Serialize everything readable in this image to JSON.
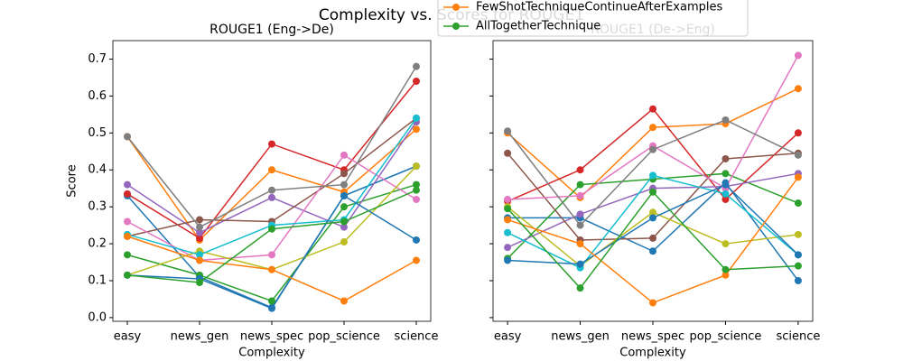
{
  "title": "Complexity vs. Scores for ROUGE1",
  "chart_data": [
    {
      "type": "line",
      "title": "ROUGE1 (Eng->De)",
      "xlabel": "Complexity",
      "ylabel": "Score",
      "categories": [
        "easy",
        "news_gen",
        "news_spec",
        "pop_science",
        "science"
      ],
      "ylim": [
        -0.01,
        0.75
      ],
      "yticks": [
        {
          "value": 0,
          "label": "0.0"
        },
        0.1,
        0.2,
        0.3,
        0.4,
        0.5,
        0.6,
        0.7
      ],
      "series": [
        {
          "color": "#1f77b4",
          "values": [
            0.33,
            0.11,
            0.027,
            0.33,
            0.41
          ]
        },
        {
          "color": "#ff7f0e",
          "values": [
            0.49,
            0.21,
            0.4,
            0.34,
            0.51
          ]
        },
        {
          "color": "#2ca02c",
          "values": [
            0.17,
            0.115,
            0.045,
            0.3,
            0.36
          ]
        },
        {
          "color": "#d62728",
          "values": [
            0.335,
            0.215,
            0.47,
            0.4,
            0.64
          ]
        },
        {
          "color": "#9467bd",
          "values": [
            0.36,
            0.23,
            0.325,
            0.245,
            0.53
          ]
        },
        {
          "color": "#8c564b",
          "values": [
            0.22,
            0.265,
            0.26,
            0.39,
            0.54
          ]
        },
        {
          "color": "#e377c2",
          "values": [
            0.26,
            0.155,
            0.17,
            0.44,
            0.32
          ]
        },
        {
          "color": "#7f7f7f",
          "values": [
            0.49,
            0.245,
            0.345,
            0.36,
            0.68
          ]
        },
        {
          "color": "#bcbd22",
          "values": [
            0.115,
            0.18,
            0.13,
            0.205,
            0.41
          ]
        },
        {
          "color": "#17becf",
          "values": [
            0.225,
            0.17,
            0.25,
            0.265,
            0.54
          ]
        },
        {
          "color": "#1f77b4",
          "values": [
            0.115,
            0.105,
            0.025,
            0.33,
            0.21
          ]
        },
        {
          "name": "FewShotTechniqueContinueAfterExamples",
          "color": "#ff7f0e",
          "values": [
            0.22,
            0.155,
            0.13,
            0.045,
            0.155
          ]
        },
        {
          "name": "AllTogetherTechnique",
          "color": "#2ca02c",
          "values": [
            0.115,
            0.095,
            0.24,
            0.26,
            0.345
          ]
        }
      ]
    },
    {
      "type": "line",
      "title": "ROUGE1 (De->Eng)",
      "xlabel": "Complexity",
      "categories": [
        "easy",
        "news_gen",
        "news_spec",
        "pop_science",
        "science"
      ],
      "ylim": [
        -0.01,
        0.75
      ],
      "yticks": [
        0,
        0.1,
        0.2,
        0.3,
        0.4,
        0.5,
        0.6,
        0.7
      ],
      "series": [
        {
          "color": "#1f77b4",
          "values": [
            0.27,
            0.27,
            0.18,
            0.365,
            0.1
          ]
        },
        {
          "color": "#ff7f0e",
          "values": [
            0.5,
            0.325,
            0.515,
            0.525,
            0.62
          ]
        },
        {
          "color": "#2ca02c",
          "values": [
            0.16,
            0.36,
            0.375,
            0.39,
            0.31
          ]
        },
        {
          "color": "#d62728",
          "values": [
            0.315,
            0.4,
            0.565,
            0.32,
            0.5
          ]
        },
        {
          "color": "#9467bd",
          "values": [
            0.19,
            0.28,
            0.35,
            0.355,
            0.39
          ]
        },
        {
          "color": "#8c564b",
          "values": [
            0.445,
            0.21,
            0.215,
            0.43,
            0.445
          ]
        },
        {
          "color": "#e377c2",
          "values": [
            0.32,
            0.33,
            0.465,
            0.35,
            0.71
          ]
        },
        {
          "color": "#7f7f7f",
          "values": [
            0.505,
            0.25,
            0.455,
            0.535,
            0.44
          ]
        },
        {
          "color": "#bcbd22",
          "values": [
            0.3,
            0.14,
            0.285,
            0.2,
            0.225
          ]
        },
        {
          "color": "#17becf",
          "values": [
            0.23,
            0.135,
            0.385,
            0.335,
            0.17
          ]
        },
        {
          "color": "#1f77b4",
          "values": [
            0.155,
            0.145,
            0.27,
            0.36,
            0.17
          ]
        },
        {
          "color": "#ff7f0e",
          "values": [
            0.265,
            0.2,
            0.04,
            0.115,
            0.38
          ]
        },
        {
          "color": "#2ca02c",
          "values": [
            0.295,
            0.08,
            0.34,
            0.13,
            0.14
          ]
        }
      ]
    }
  ]
}
